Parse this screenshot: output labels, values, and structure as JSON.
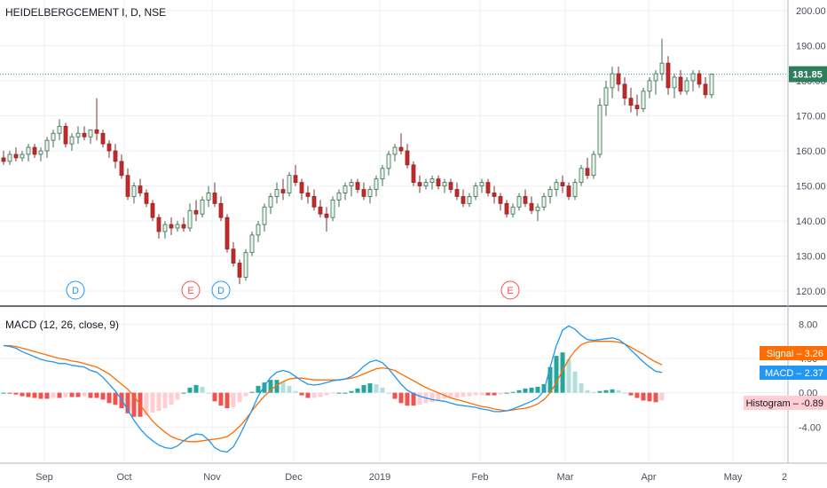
{
  "chart_data": {
    "type": "candlestick",
    "title": "HEIDELBERGCEMENT I, D, NSE",
    "price_axis_labels": [
      "200.00",
      "190.00",
      "180.00",
      "170.00",
      "160.00",
      "150.00",
      "140.00",
      "130.00",
      "120.00"
    ],
    "price_axis_range": [
      116,
      203
    ],
    "last_price_label": "181.85",
    "last_price": 181.85,
    "x_axis_labels": [
      "Sep",
      "Oct",
      "Nov",
      "Dec",
      "2019",
      "Feb",
      "Mar",
      "Apr",
      "May",
      "2"
    ],
    "events": [
      {
        "letter": "D",
        "date": "Sep",
        "color": "#2196f3"
      },
      {
        "letter": "E",
        "date": "Oct",
        "color": "#ef5350"
      },
      {
        "letter": "D",
        "date": "Nov",
        "color": "#2196f3"
      },
      {
        "letter": "E",
        "date": "Feb",
        "color": "#ef5350"
      }
    ],
    "candles": [
      [
        158,
        160,
        156,
        157
      ],
      [
        157,
        160,
        156,
        159
      ],
      [
        159,
        161,
        157,
        158
      ],
      [
        158,
        160,
        157,
        159
      ],
      [
        159,
        162,
        157,
        161
      ],
      [
        161,
        162,
        158,
        159
      ],
      [
        159,
        161,
        157,
        160
      ],
      [
        160,
        164,
        158,
        163
      ],
      [
        163,
        166,
        161,
        165
      ],
      [
        165,
        169,
        163,
        167
      ],
      [
        167,
        168,
        161,
        162
      ],
      [
        162,
        165,
        160,
        164
      ],
      [
        164,
        167,
        162,
        165
      ],
      [
        165,
        167,
        163,
        164
      ],
      [
        164,
        166,
        162,
        166
      ],
      [
        166,
        175,
        163,
        165
      ],
      [
        165,
        166,
        161,
        162
      ],
      [
        162,
        163,
        158,
        160
      ],
      [
        160,
        162,
        155,
        157
      ],
      [
        157,
        159,
        152,
        153
      ],
      [
        153,
        155,
        146,
        147
      ],
      [
        147,
        151,
        145,
        150
      ],
      [
        150,
        152,
        147,
        148
      ],
      [
        148,
        149,
        144,
        145
      ],
      [
        145,
        146,
        140,
        141
      ],
      [
        141,
        142,
        135,
        137
      ],
      [
        137,
        140,
        135,
        139
      ],
      [
        139,
        141,
        136,
        138
      ],
      [
        138,
        140,
        137,
        139
      ],
      [
        139,
        141,
        137,
        138
      ],
      [
        138,
        145,
        137,
        143
      ],
      [
        143,
        146,
        140,
        142
      ],
      [
        142,
        147,
        141,
        146
      ],
      [
        146,
        150,
        144,
        148
      ],
      [
        148,
        151,
        144,
        145
      ],
      [
        145,
        147,
        140,
        141
      ],
      [
        141,
        142,
        131,
        132
      ],
      [
        132,
        134,
        127,
        128
      ],
      [
        128,
        129,
        122,
        124
      ],
      [
        124,
        132,
        123,
        131
      ],
      [
        131,
        137,
        130,
        136
      ],
      [
        136,
        140,
        134,
        139
      ],
      [
        139,
        145,
        137,
        144
      ],
      [
        144,
        148,
        142,
        147
      ],
      [
        147,
        151,
        145,
        149
      ],
      [
        149,
        152,
        146,
        148
      ],
      [
        148,
        154,
        147,
        153
      ],
      [
        153,
        156,
        150,
        151
      ],
      [
        151,
        152,
        146,
        148
      ],
      [
        148,
        150,
        145,
        147
      ],
      [
        147,
        149,
        143,
        144
      ],
      [
        144,
        146,
        141,
        142
      ],
      [
        142,
        144,
        137,
        141
      ],
      [
        141,
        147,
        140,
        146
      ],
      [
        146,
        149,
        144,
        148
      ],
      [
        148,
        151,
        146,
        150
      ],
      [
        150,
        152,
        147,
        151
      ],
      [
        151,
        152,
        148,
        149
      ],
      [
        149,
        151,
        146,
        147
      ],
      [
        147,
        150,
        145,
        149
      ],
      [
        149,
        153,
        147,
        152
      ],
      [
        152,
        156,
        150,
        155
      ],
      [
        155,
        160,
        153,
        159
      ],
      [
        159,
        162,
        157,
        161
      ],
      [
        161,
        165,
        159,
        160
      ],
      [
        160,
        162,
        155,
        156
      ],
      [
        156,
        157,
        150,
        151
      ],
      [
        151,
        153,
        148,
        150
      ],
      [
        150,
        152,
        149,
        151
      ],
      [
        151,
        153,
        149,
        152
      ],
      [
        152,
        153,
        149,
        150
      ],
      [
        150,
        152,
        148,
        151
      ],
      [
        151,
        152,
        148,
        149
      ],
      [
        149,
        151,
        146,
        147
      ],
      [
        147,
        149,
        144,
        145
      ],
      [
        145,
        148,
        144,
        147
      ],
      [
        147,
        151,
        146,
        150
      ],
      [
        150,
        152,
        148,
        151
      ],
      [
        151,
        152,
        147,
        148
      ],
      [
        148,
        150,
        145,
        147
      ],
      [
        147,
        148,
        143,
        145
      ],
      [
        145,
        146,
        141,
        142
      ],
      [
        142,
        145,
        141,
        144
      ],
      [
        144,
        148,
        143,
        147
      ],
      [
        147,
        149,
        144,
        145
      ],
      [
        145,
        147,
        142,
        143
      ],
      [
        143,
        145,
        140,
        144
      ],
      [
        144,
        148,
        143,
        147
      ],
      [
        147,
        150,
        145,
        149
      ],
      [
        149,
        152,
        147,
        151
      ],
      [
        151,
        153,
        148,
        150
      ],
      [
        150,
        151,
        146,
        147
      ],
      [
        147,
        152,
        146,
        151
      ],
      [
        151,
        156,
        150,
        155
      ],
      [
        155,
        158,
        152,
        153
      ],
      [
        153,
        160,
        152,
        159
      ],
      [
        159,
        175,
        158,
        173
      ],
      [
        173,
        180,
        170,
        178
      ],
      [
        178,
        184,
        175,
        182
      ],
      [
        182,
        184,
        177,
        179
      ],
      [
        179,
        181,
        173,
        175
      ],
      [
        175,
        178,
        171,
        173
      ],
      [
        173,
        176,
        170,
        172
      ],
      [
        172,
        178,
        171,
        177
      ],
      [
        177,
        181,
        175,
        180
      ],
      [
        180,
        183,
        176,
        182
      ],
      [
        182,
        192,
        180,
        185
      ],
      [
        185,
        187,
        176,
        178
      ],
      [
        178,
        182,
        175,
        181
      ],
      [
        181,
        183,
        176,
        177
      ],
      [
        177,
        181,
        176,
        180
      ],
      [
        180,
        183,
        177,
        182
      ],
      [
        182,
        183,
        178,
        179
      ],
      [
        179,
        181,
        175,
        176
      ],
      [
        176,
        182,
        175,
        181.85
      ]
    ],
    "macd": {
      "title": "MACD (12, 26, close, 9)",
      "axis_labels": [
        "8.00",
        "4.00",
        "0.00",
        "-4.00"
      ],
      "axis_range": [
        -8,
        10
      ],
      "signal_label": "Signal",
      "signal_value": "3.26",
      "macd_label": "MACD",
      "macd_value": "2.37",
      "histogram_label": "Histogram",
      "histogram_value": "-0.89",
      "macd_line": [
        5.5,
        5.4,
        5.2,
        4.8,
        4.5,
        4.2,
        3.9,
        3.7,
        3.6,
        3.4,
        3.4,
        3.2,
        3.1,
        3.0,
        2.6,
        2.4,
        1.8,
        1.0,
        0.2,
        -0.8,
        -2.0,
        -3.2,
        -4.2,
        -5.0,
        -5.6,
        -6.1,
        -6.4,
        -6.5,
        -6.2,
        -5.6,
        -5.1,
        -4.8,
        -4.9,
        -5.5,
        -6.4,
        -6.8,
        -6.9,
        -6.3,
        -5.0,
        -3.5,
        -2.0,
        -0.4,
        0.8,
        1.8,
        2.4,
        2.6,
        2.4,
        1.9,
        1.4,
        1.0,
        0.9,
        1.0,
        1.2,
        1.4,
        1.5,
        1.6,
        1.9,
        2.4,
        3.1,
        3.6,
        3.8,
        3.5,
        2.8,
        1.9,
        1.0,
        0.3,
        -0.1,
        -0.4,
        -0.6,
        -0.8,
        -0.9,
        -1.0,
        -1.2,
        -1.4,
        -1.5,
        -1.6,
        -1.7,
        -1.9,
        -2.0,
        -2.2,
        -2.2,
        -2.1,
        -1.9,
        -1.6,
        -1.3,
        -1.0,
        -0.6,
        0.2,
        3.0,
        5.5,
        7.3,
        7.8,
        7.4,
        6.7,
        6.2,
        6.1,
        6.2,
        6.3,
        6.4,
        6.2,
        5.7,
        5.0,
        4.3,
        3.6,
        3.0,
        2.5,
        2.37
      ],
      "signal_line": [
        5.5,
        5.5,
        5.4,
        5.2,
        5.0,
        4.8,
        4.6,
        4.4,
        4.2,
        4.0,
        3.9,
        3.7,
        3.6,
        3.4,
        3.2,
        3.0,
        2.6,
        2.2,
        1.6,
        1.0,
        0.4,
        -0.4,
        -1.4,
        -2.4,
        -3.3,
        -4.0,
        -4.6,
        -5.1,
        -5.4,
        -5.6,
        -5.7,
        -5.7,
        -5.6,
        -5.5,
        -5.4,
        -5.3,
        -5.1,
        -4.6,
        -3.9,
        -3.1,
        -2.1,
        -1.2,
        -0.4,
        0.3,
        0.9,
        1.3,
        1.6,
        1.7,
        1.7,
        1.6,
        1.5,
        1.5,
        1.5,
        1.5,
        1.5,
        1.6,
        1.7,
        1.9,
        2.2,
        2.5,
        2.8,
        2.9,
        2.8,
        2.6,
        2.2,
        1.8,
        1.4,
        1.0,
        0.6,
        0.3,
        0.0,
        -0.3,
        -0.6,
        -0.8,
        -1.0,
        -1.2,
        -1.4,
        -1.6,
        -1.7,
        -1.9,
        -2.0,
        -2.1,
        -2.0,
        -1.9,
        -1.8,
        -1.6,
        -1.3,
        -0.8,
        0.0,
        1.2,
        2.6,
        3.9,
        4.9,
        5.6,
        5.9,
        6.0,
        6.0,
        6.0,
        6.0,
        5.9,
        5.7,
        5.3,
        4.9,
        4.5,
        4.0,
        3.6,
        3.26
      ]
    }
  }
}
